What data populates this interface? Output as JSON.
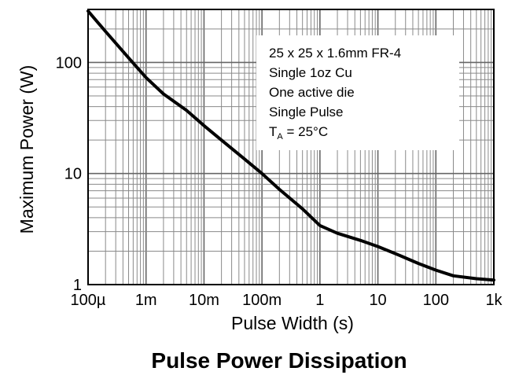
{
  "chart_data": {
    "type": "line",
    "title": "Pulse Power Dissipation",
    "xlabel": "Pulse Width (s)",
    "ylabel": "Maximum Power (W)",
    "x_scale": "log",
    "y_scale": "log",
    "xlim": [
      0.0001,
      1000
    ],
    "ylim": [
      1,
      300
    ],
    "x_ticks": [
      {
        "value": 0.0001,
        "label": "100µ"
      },
      {
        "value": 0.001,
        "label": "1m"
      },
      {
        "value": 0.01,
        "label": "10m"
      },
      {
        "value": 0.1,
        "label": "100m"
      },
      {
        "value": 1,
        "label": "1"
      },
      {
        "value": 10,
        "label": "10"
      },
      {
        "value": 100,
        "label": "100"
      },
      {
        "value": 1000,
        "label": "1k"
      }
    ],
    "y_ticks": [
      {
        "value": 1,
        "label": "1"
      },
      {
        "value": 10,
        "label": "10"
      },
      {
        "value": 100,
        "label": "100"
      }
    ],
    "grid": true,
    "series": [
      {
        "x": [
          0.0001,
          0.0002,
          0.0005,
          0.001,
          0.002,
          0.005,
          0.01,
          0.02,
          0.05,
          0.1,
          0.2,
          0.5,
          1,
          2,
          5,
          10,
          20,
          50,
          100,
          200,
          500,
          1000
        ],
        "y": [
          290,
          190,
          110,
          73,
          52,
          37,
          27,
          20,
          13.5,
          10,
          7.2,
          4.8,
          3.4,
          2.9,
          2.5,
          2.2,
          1.9,
          1.55,
          1.35,
          1.2,
          1.13,
          1.1
        ],
        "color": "#000000"
      }
    ],
    "annotation": {
      "lines": [
        "25 x 25 x 1.6mm FR-4",
        "Single 1oz Cu",
        "One active die",
        "Single Pulse"
      ],
      "ta_prefix": "T",
      "ta_subscript": "A",
      "ta_value": " = 25°C"
    }
  }
}
